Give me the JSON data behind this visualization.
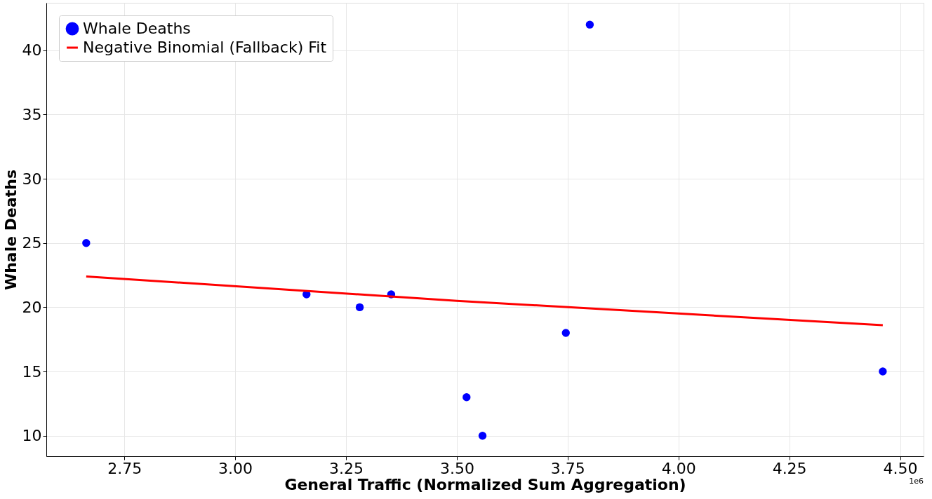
{
  "chart_data": {
    "type": "scatter",
    "xlabel": "General Traffic (Normalized Sum Aggregation)",
    "ylabel": "Whale Deaths",
    "series": [
      {
        "name": "Whale Deaths",
        "type": "scatter",
        "color": "#0000ff",
        "marker": "circle",
        "x": [
          2.664,
          3.161,
          3.281,
          3.352,
          3.522,
          3.558,
          3.746,
          3.8,
          4.461
        ],
        "values": [
          25,
          21,
          20,
          21,
          13,
          10,
          18,
          42,
          15
        ]
      },
      {
        "name": "Negative Binomial (Fallback) Fit",
        "type": "line",
        "color": "#ff0000",
        "line_style": "solid",
        "x": [
          2.664,
          3.5,
          4.461
        ],
        "values": [
          22.4,
          20.5,
          18.6
        ]
      }
    ],
    "xlim": [
      2.574,
      4.553
    ],
    "xticks": [
      {
        "value": 2.75,
        "label": "2.75"
      },
      {
        "value": 3.0,
        "label": "3.00"
      },
      {
        "value": 3.25,
        "label": "3.25"
      },
      {
        "value": 3.5,
        "label": "3.50"
      },
      {
        "value": 3.75,
        "label": "3.75"
      },
      {
        "value": 4.0,
        "label": "4.00"
      },
      {
        "value": 4.25,
        "label": "4.25"
      },
      {
        "value": 4.5,
        "label": "4.50"
      }
    ],
    "ylim": [
      8.4,
      43.7
    ],
    "yticks": [
      10,
      15,
      20,
      25,
      30,
      35,
      40
    ],
    "annotations": [
      "1e6"
    ],
    "grid": true,
    "legend": "top left"
  }
}
